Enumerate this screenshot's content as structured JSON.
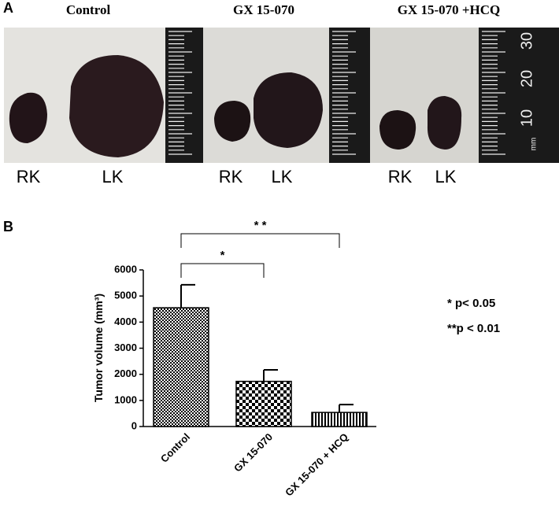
{
  "panel_a": {
    "label": "A",
    "titles": [
      "Control",
      "GX 15-070",
      "GX 15-070 +HCQ"
    ],
    "kidney_labels": [
      "RK",
      "LK",
      "RK",
      "LK",
      "RK",
      "LK"
    ],
    "ruler_labels": [
      "30",
      "20",
      "10",
      "mm"
    ]
  },
  "panel_b_label": "B",
  "chart_data": {
    "type": "bar",
    "ylabel": "Tumor volume (mm³)",
    "categories": [
      "Control",
      "GX 15-070",
      "GX 15-070 + HCQ"
    ],
    "values": [
      4550,
      1730,
      540
    ],
    "errors": [
      880,
      440,
      300
    ],
    "color": "#000000",
    "ylim": [
      0,
      6000
    ],
    "yticks": [
      0,
      1000,
      2000,
      3000,
      4000,
      5000,
      6000
    ],
    "significance": [
      "*",
      "* *"
    ],
    "notes": [
      "* p< 0.05",
      "**p < 0.01"
    ]
  }
}
